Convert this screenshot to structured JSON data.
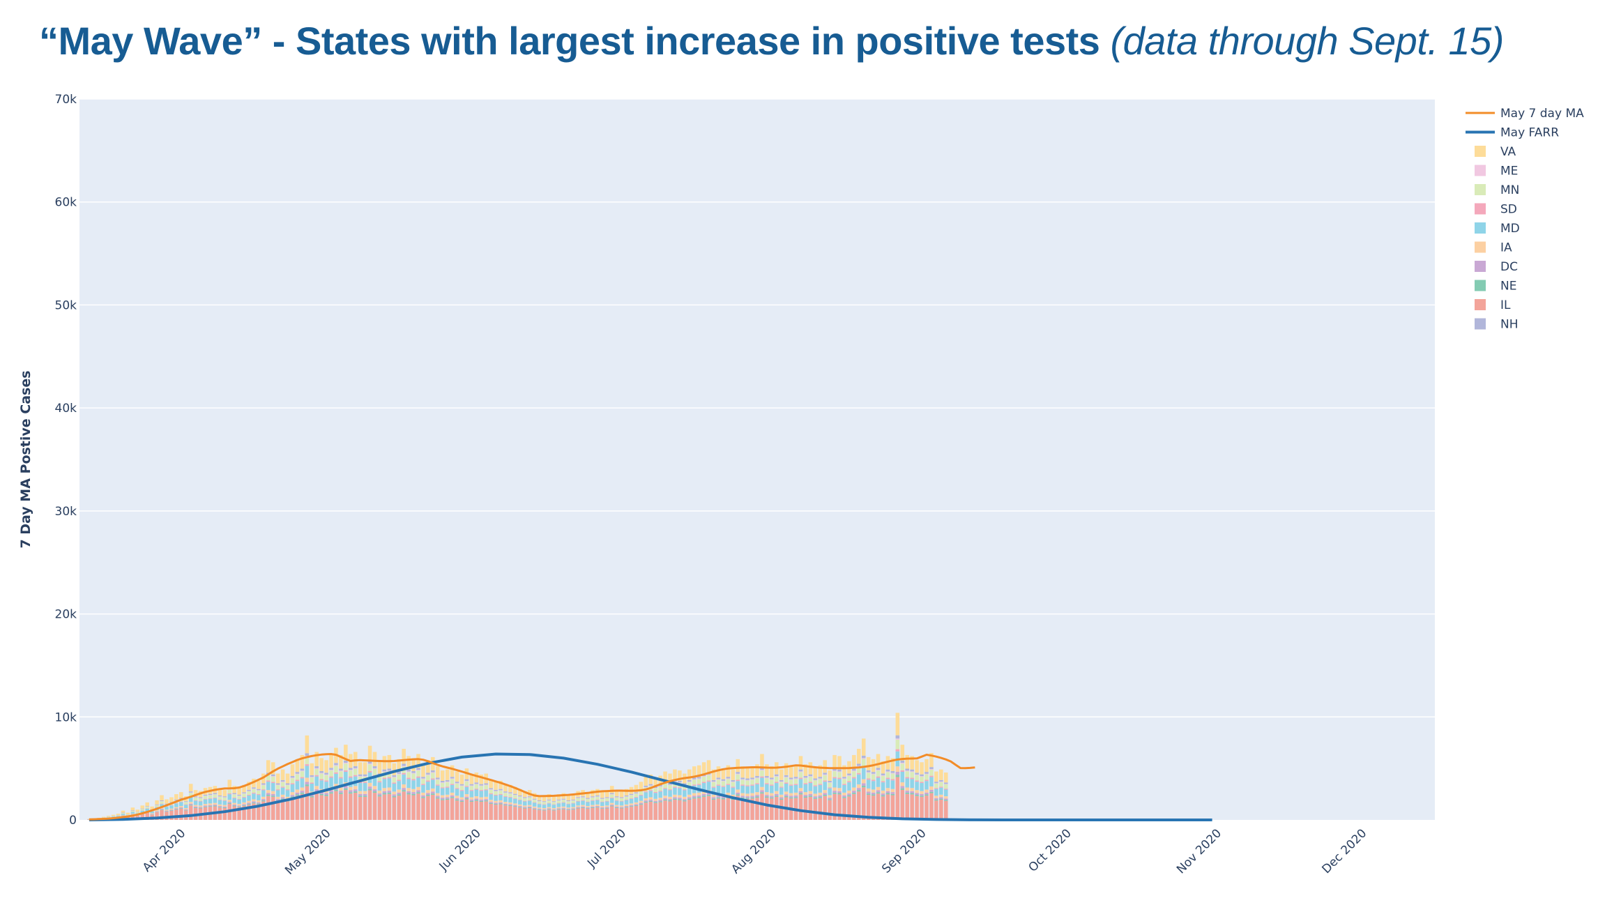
{
  "title": {
    "main": "“May Wave” - States with largest increase in positive tests",
    "note": "(data through Sept. 15)"
  },
  "chart_data": {
    "type": "bar",
    "barmode": "stacked",
    "ylabel": "7 Day MA Postive Cases",
    "ylim": [
      0,
      70000
    ],
    "yticks": [
      0,
      10000,
      20000,
      30000,
      40000,
      50000,
      60000,
      70000
    ],
    "ytick_labels": [
      "0",
      "10k",
      "20k",
      "30k",
      "40k",
      "50k",
      "60k",
      "70k"
    ],
    "xrange": [
      "2020-03-10",
      "2020-12-15"
    ],
    "xticks": [
      "2020-04-01",
      "2020-05-01",
      "2020-06-01",
      "2020-07-01",
      "2020-08-01",
      "2020-09-01",
      "2020-10-01",
      "2020-11-01",
      "2020-12-01"
    ],
    "xtick_labels": [
      "Apr 2020",
      "May 2020",
      "Jun 2020",
      "Jul 2020",
      "Aug 2020",
      "Sep 2020",
      "Oct 2020",
      "Nov 2020",
      "Dec 2020"
    ],
    "grid": true,
    "legend_position": "right",
    "colors": {
      "VA": "#fddc99",
      "ME": "#f1c8e1",
      "MN": "#d9ebb8",
      "SD": "#f4a8bb",
      "MD": "#8fd4e8",
      "IA": "#fcd0a2",
      "DC": "#c9a8d4",
      "NE": "#83cbb2",
      "IL": "#f3a49a",
      "NH": "#b1b6da",
      "ma_line": "#f28c28",
      "farr_line": "#2874b2",
      "plot_bg": "#e5ecf6",
      "title": "#175c93"
    },
    "legend": [
      "May 7 day MA",
      "May FARR",
      "VA",
      "ME",
      "MN",
      "SD",
      "MD",
      "IA",
      "DC",
      "NE",
      "IL",
      "NH"
    ],
    "stack_order": [
      "IL",
      "NE",
      "DC",
      "IA",
      "MD",
      "SD",
      "MN",
      "ME",
      "NH",
      "VA"
    ],
    "bars": {
      "start": "2020-03-12",
      "totals": [
        100,
        150,
        200,
        300,
        400,
        500,
        600,
        900,
        700,
        1200,
        1000,
        1400,
        1700,
        1300,
        1900,
        2400,
        2000,
        2200,
        2500,
        2700,
        2300,
        3500,
        2900,
        2800,
        3100,
        3200,
        3300,
        3000,
        2900,
        3900,
        3300,
        3100,
        3400,
        3700,
        4000,
        3800,
        4500,
        5800,
        5600,
        4500,
        4900,
        4500,
        5400,
        5900,
        6300,
        8200,
        5500,
        6600,
        6000,
        5800,
        6400,
        7000,
        6300,
        7300,
        6400,
        6600,
        5600,
        5600,
        7200,
        6600,
        5700,
        6200,
        6300,
        5500,
        5900,
        6900,
        6200,
        6000,
        6400,
        5300,
        5800,
        6100,
        5200,
        4800,
        4900,
        5300,
        4700,
        4400,
        5000,
        4400,
        4600,
        4400,
        4500,
        3900,
        3700,
        3800,
        3500,
        3400,
        3200,
        3000,
        2800,
        2900,
        2600,
        2400,
        2300,
        2500,
        2300,
        2500,
        2600,
        2400,
        2500,
        2800,
        2900,
        2700,
        2900,
        3000,
        2700,
        2800,
        3300,
        2900,
        2800,
        3000,
        3200,
        3400,
        3700,
        4200,
        4400,
        4100,
        4300,
        4700,
        4500,
        4900,
        4800,
        4500,
        4900,
        5200,
        5300,
        5600,
        5800,
        4900,
        5200,
        5000,
        5300,
        4900,
        5900,
        5200,
        5100,
        5200,
        5400,
        6400,
        5400,
        5200,
        5600,
        4900,
        5500,
        5200,
        5300,
        6200,
        5400,
        5600,
        5100,
        5300,
        5800,
        4800,
        6300,
        6200,
        5300,
        5700,
        6300,
        6900,
        7900,
        6100,
        5900,
        6400,
        5700,
        6200,
        6000,
        10400,
        7300,
        6300,
        6200,
        5800,
        5600,
        5900,
        6500,
        4700,
        4900,
        4600
      ],
      "shares": {
        "IL": 0.4,
        "NE": 0.02,
        "DC": 0.03,
        "IA": 0.05,
        "MD": 0.14,
        "SD": 0.02,
        "MN": 0.09,
        "ME": 0.01,
        "NH": 0.03,
        "VA": 0.21
      }
    },
    "series": [
      {
        "name": "May 7 day MA",
        "start": "2020-03-12",
        "values": [
          50,
          60,
          80,
          100,
          130,
          170,
          220,
          280,
          340,
          420,
          520,
          640,
          780,
          930,
          1080,
          1250,
          1420,
          1600,
          1780,
          1960,
          2100,
          2250,
          2420,
          2580,
          2720,
          2820,
          2920,
          3000,
          3050,
          3060,
          3080,
          3150,
          3300,
          3480,
          3680,
          3900,
          4120,
          4420,
          4720,
          4980,
          5200,
          5420,
          5620,
          5820,
          5980,
          6100,
          6200,
          6280,
          6340,
          6380,
          6400,
          6320,
          6120,
          5900,
          5720,
          5780,
          5800,
          5780,
          5760,
          5740,
          5720,
          5700,
          5700,
          5720,
          5760,
          5800,
          5850,
          5880,
          5900,
          5840,
          5700,
          5520,
          5340,
          5200,
          5080,
          4960,
          4830,
          4690,
          4550,
          4410,
          4270,
          4140,
          4010,
          3880,
          3740,
          3600,
          3440,
          3280,
          3100,
          2910,
          2710,
          2520,
          2370,
          2310,
          2320,
          2330,
          2340,
          2370,
          2400,
          2430,
          2470,
          2520,
          2570,
          2620,
          2680,
          2740,
          2780,
          2800,
          2820,
          2840,
          2840,
          2830,
          2820,
          2840,
          2880,
          2960,
          3100,
          3280,
          3460,
          3620,
          3760,
          3880,
          3980,
          4060,
          4120,
          4200,
          4300,
          4420,
          4560,
          4700,
          4820,
          4920,
          4990,
          5030,
          5060,
          5080,
          5100,
          5110,
          5110,
          5100,
          5080,
          5070,
          5080,
          5110,
          5160,
          5230,
          5300,
          5280,
          5220,
          5160,
          5110,
          5070,
          5050,
          5030,
          5020,
          5020,
          5020,
          5040,
          5070,
          5100,
          5150,
          5220,
          5310,
          5420,
          5540,
          5660,
          5770,
          5860,
          5920,
          5950,
          5960,
          5970,
          6150,
          6330,
          6250,
          6150,
          6020,
          5870,
          5680,
          5350,
          5040,
          5030,
          5050,
          5100
        ]
      },
      {
        "name": "May FARR",
        "start": "2020-03-12",
        "end": "2020-10-30",
        "values_weekly": [
          0,
          50,
          180,
          420,
          800,
          1350,
          2050,
          2900,
          3800,
          4700,
          5500,
          6100,
          6400,
          6350,
          6000,
          5400,
          4650,
          3800,
          2950,
          2150,
          1450,
          900,
          500,
          250,
          110,
          40,
          10,
          0,
          0,
          0,
          0,
          0,
          0,
          0
        ]
      }
    ]
  }
}
